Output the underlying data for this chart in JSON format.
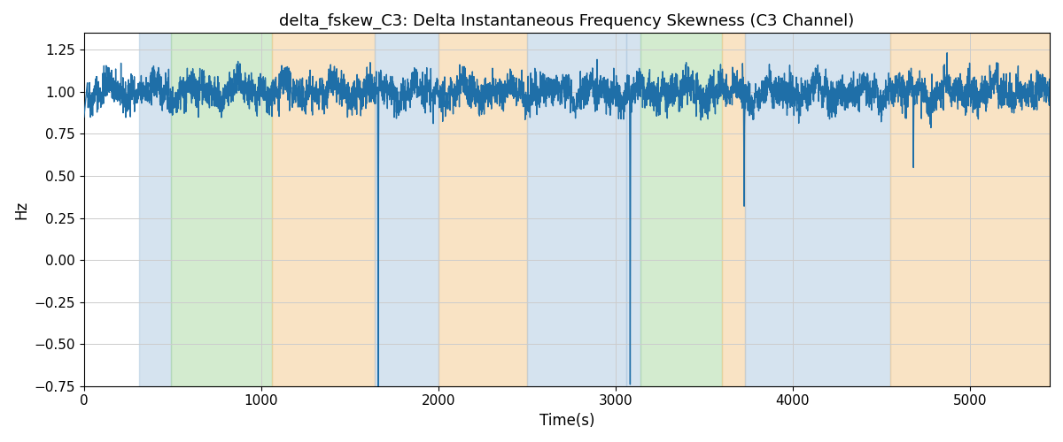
{
  "title": "delta_fskew_C3: Delta Instantaneous Frequency Skewness (C3 Channel)",
  "xlabel": "Time(s)",
  "ylabel": "Hz",
  "xlim": [
    0,
    5450
  ],
  "ylim": [
    -0.75,
    1.35
  ],
  "background_regions": [
    {
      "xstart": 310,
      "xend": 490,
      "color": "#adc8e0",
      "alpha": 0.5
    },
    {
      "xstart": 490,
      "xend": 1060,
      "color": "#a8d8a0",
      "alpha": 0.5
    },
    {
      "xstart": 1060,
      "xend": 1640,
      "color": "#f5c98a",
      "alpha": 0.5
    },
    {
      "xstart": 1640,
      "xend": 2000,
      "color": "#adc8e0",
      "alpha": 0.5
    },
    {
      "xstart": 2000,
      "xend": 2500,
      "color": "#f5c98a",
      "alpha": 0.5
    },
    {
      "xstart": 2500,
      "xend": 3060,
      "color": "#adc8e0",
      "alpha": 0.5
    },
    {
      "xstart": 3060,
      "xend": 3140,
      "color": "#adc8e0",
      "alpha": 0.5
    },
    {
      "xstart": 3140,
      "xend": 3600,
      "color": "#a8d8a0",
      "alpha": 0.5
    },
    {
      "xstart": 3600,
      "xend": 3730,
      "color": "#f5c98a",
      "alpha": 0.5
    },
    {
      "xstart": 3730,
      "xend": 4550,
      "color": "#adc8e0",
      "alpha": 0.5
    },
    {
      "xstart": 4550,
      "xend": 5450,
      "color": "#f5c98a",
      "alpha": 0.5
    }
  ],
  "line_color": "#1f6fa8",
  "line_width": 1.0,
  "seed": 42,
  "grid_color": "#cccccc",
  "title_fontsize": 13,
  "label_fontsize": 12,
  "tick_fontsize": 11,
  "n_points": 5450
}
